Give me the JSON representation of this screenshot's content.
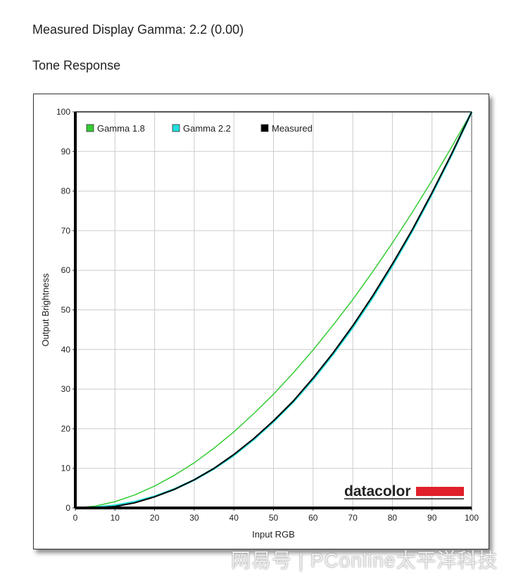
{
  "header": {
    "gamma_text": "Measured Display Gamma: 2.2 (0.00)",
    "section_title": "Tone Response"
  },
  "watermark": "网易号 | PConline太平洋科技",
  "chart_data": {
    "type": "line",
    "xlabel": "Input RGB",
    "ylabel": "Output Brightness",
    "xlim": [
      0,
      100
    ],
    "ylim": [
      0,
      100
    ],
    "xticks": [
      0,
      10,
      20,
      30,
      40,
      50,
      60,
      70,
      80,
      90,
      100
    ],
    "yticks": [
      0,
      10,
      20,
      30,
      40,
      50,
      60,
      70,
      80,
      90,
      100
    ],
    "grid": true,
    "legend_position": "top-left",
    "logo": "datacolor",
    "x": [
      0,
      5,
      10,
      15,
      20,
      25,
      30,
      35,
      40,
      45,
      50,
      55,
      60,
      65,
      70,
      75,
      80,
      85,
      90,
      95,
      100
    ],
    "series": [
      {
        "name": "Gamma 1.8",
        "color": "#33cc33",
        "values": [
          0,
          0.46,
          1.58,
          3.29,
          5.52,
          8.25,
          11.4,
          15.1,
          19.2,
          23.8,
          28.7,
          34.1,
          39.9,
          46.1,
          52.6,
          59.6,
          66.9,
          74.6,
          82.7,
          91.2,
          100
        ]
      },
      {
        "name": "Gamma 2.2",
        "color": "#22dddd",
        "values": [
          0,
          0.14,
          0.63,
          1.54,
          2.91,
          4.74,
          7.07,
          9.93,
          13.3,
          17.3,
          21.8,
          26.8,
          32.5,
          38.8,
          45.6,
          53.1,
          61.2,
          69.9,
          79.3,
          89.3,
          100
        ]
      },
      {
        "name": "Measured",
        "color": "#000000",
        "values": [
          0,
          0.05,
          0.35,
          1.3,
          2.8,
          4.7,
          7.1,
          10.0,
          13.5,
          17.5,
          22.0,
          27.0,
          32.8,
          39.1,
          46.0,
          53.5,
          61.6,
          70.2,
          79.6,
          89.5,
          100
        ]
      }
    ]
  }
}
